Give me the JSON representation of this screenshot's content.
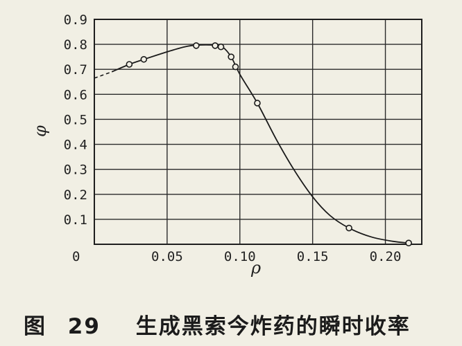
{
  "chart_data": {
    "type": "line",
    "xlabel": "ρ",
    "ylabel": "φ",
    "xlim": [
      0,
      0.225
    ],
    "ylim": [
      0,
      0.9
    ],
    "x_ticks": [
      {
        "value": 0,
        "label": "0"
      },
      {
        "value": 0.05,
        "label": "0.05"
      },
      {
        "value": 0.1,
        "label": "0.10"
      },
      {
        "value": 0.15,
        "label": "0.15"
      },
      {
        "value": 0.2,
        "label": "0.20"
      }
    ],
    "y_ticks": [
      {
        "value": 0.1,
        "label": "0.1"
      },
      {
        "value": 0.2,
        "label": "0.2"
      },
      {
        "value": 0.3,
        "label": "0.3"
      },
      {
        "value": 0.4,
        "label": "0.4"
      },
      {
        "value": 0.5,
        "label": "0.5"
      },
      {
        "value": 0.6,
        "label": "0.6"
      },
      {
        "value": 0.7,
        "label": "0.7"
      },
      {
        "value": 0.8,
        "label": "0.8"
      },
      {
        "value": 0.9,
        "label": "0.9"
      }
    ],
    "grid": true,
    "series": [
      {
        "points": [
          {
            "x": 0.024,
            "y": 0.72
          },
          {
            "x": 0.034,
            "y": 0.74
          },
          {
            "x": 0.07,
            "y": 0.795
          },
          {
            "x": 0.083,
            "y": 0.795
          },
          {
            "x": 0.087,
            "y": 0.79
          },
          {
            "x": 0.094,
            "y": 0.75
          },
          {
            "x": 0.097,
            "y": 0.71
          },
          {
            "x": 0.112,
            "y": 0.565
          },
          {
            "x": 0.175,
            "y": 0.065
          },
          {
            "x": 0.216,
            "y": 0.005
          }
        ],
        "curve": [
          {
            "x": 0.012,
            "y": 0.69
          },
          {
            "x": 0.024,
            "y": 0.72
          },
          {
            "x": 0.034,
            "y": 0.74
          },
          {
            "x": 0.05,
            "y": 0.77
          },
          {
            "x": 0.062,
            "y": 0.79
          },
          {
            "x": 0.07,
            "y": 0.797
          },
          {
            "x": 0.083,
            "y": 0.797
          },
          {
            "x": 0.088,
            "y": 0.79
          },
          {
            "x": 0.094,
            "y": 0.75
          },
          {
            "x": 0.1,
            "y": 0.68
          },
          {
            "x": 0.112,
            "y": 0.565
          },
          {
            "x": 0.125,
            "y": 0.42
          },
          {
            "x": 0.137,
            "y": 0.3
          },
          {
            "x": 0.15,
            "y": 0.19
          },
          {
            "x": 0.162,
            "y": 0.115
          },
          {
            "x": 0.175,
            "y": 0.065
          },
          {
            "x": 0.19,
            "y": 0.03
          },
          {
            "x": 0.205,
            "y": 0.012
          },
          {
            "x": 0.216,
            "y": 0.005
          }
        ],
        "extrapolated": [
          {
            "x": 0.0,
            "y": 0.665
          },
          {
            "x": 0.012,
            "y": 0.69
          }
        ]
      }
    ]
  },
  "caption": {
    "figure_label": "图",
    "figure_number": "29",
    "text": "生成黑索今炸药的瞬时收率"
  }
}
